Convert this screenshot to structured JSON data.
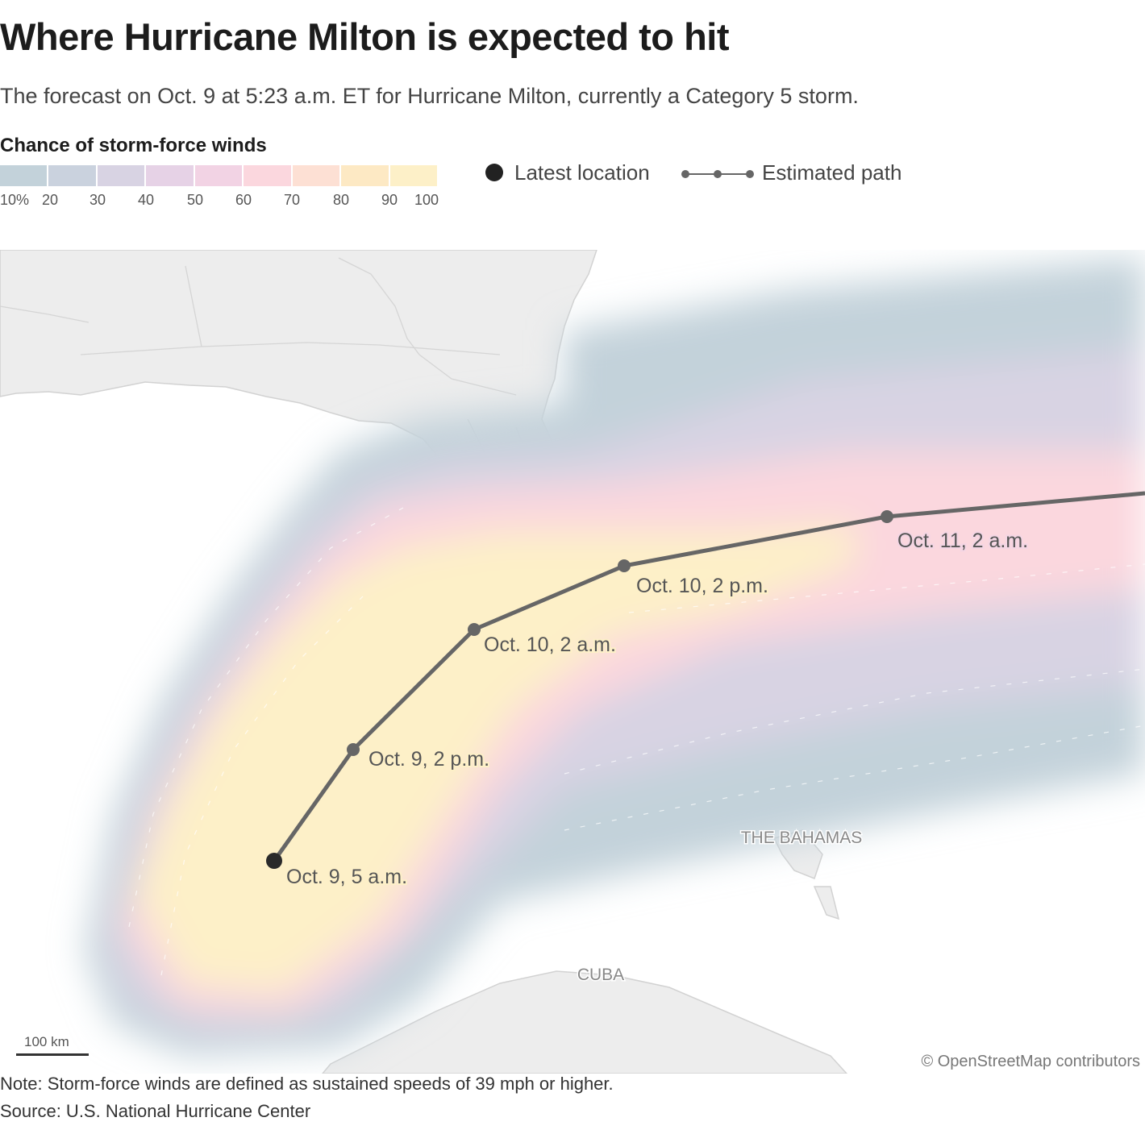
{
  "title": "Where Hurricane Milton is expected to hit",
  "subtitle": "The forecast on Oct. 9 at 5:23 a.m. ET for Hurricane Milton, currently a Category 5 storm.",
  "legend": {
    "title": "Chance of storm-force winds",
    "ticks": [
      "10%",
      "20",
      "30",
      "40",
      "50",
      "60",
      "70",
      "80",
      "90",
      "100"
    ],
    "colors": [
      "#c3d2da",
      "#cad2de",
      "#d8d3e3",
      "#e6d2e6",
      "#f2d3e4",
      "#fbd7de",
      "#fde0d4",
      "#fde9c4",
      "#fdf0c8"
    ],
    "latest_location": "Latest location",
    "estimated_path": "Estimated path"
  },
  "map": {
    "labels": {
      "bahamas": "THE BAHAMAS",
      "cuba": "CUBA"
    },
    "track": [
      {
        "label": "Oct. 9, 5 a.m.",
        "latest": true
      },
      {
        "label": "Oct. 9, 2 p.m."
      },
      {
        "label": "Oct. 10, 2 a.m."
      },
      {
        "label": "Oct. 10, 2 p.m."
      },
      {
        "label": "Oct. 11, 2 a.m."
      }
    ],
    "scale": "100 km",
    "attribution": "© OpenStreetMap contributors"
  },
  "note": "Note: Storm-force winds are defined as sustained speeds of 39 mph or higher.",
  "source": "Source: U.S. National Hurricane Center"
}
